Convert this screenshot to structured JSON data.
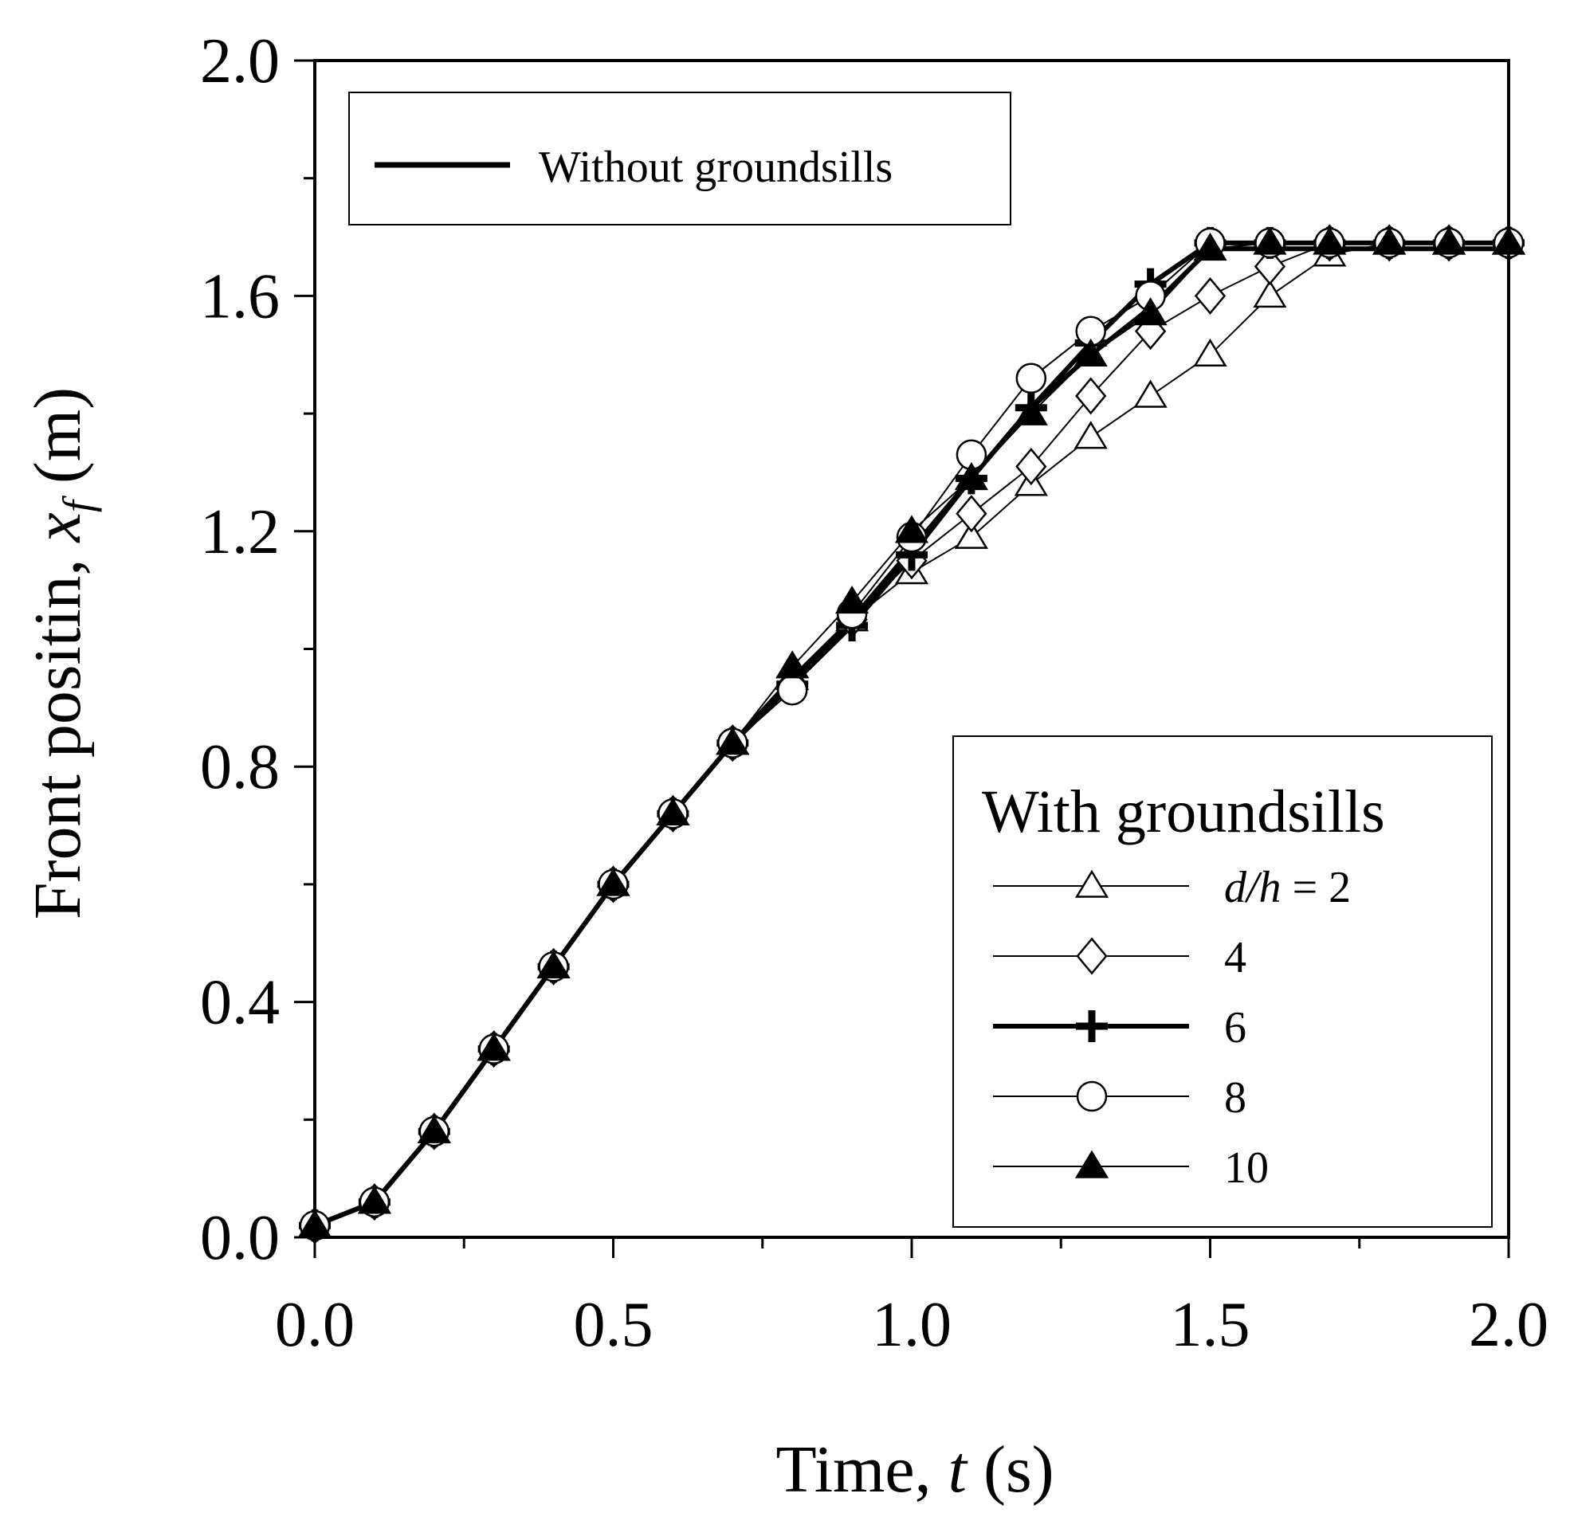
{
  "chart_data": {
    "type": "line",
    "xlabel": "Time, t (s)",
    "xlabel_parts": [
      "Time, ",
      "t",
      " (s)"
    ],
    "ylabel": "Front positin, x_f (m)",
    "ylabel_parts": [
      "Front positin, ",
      "x",
      "f",
      " (m)"
    ],
    "xlim": [
      0,
      2.0
    ],
    "ylim": [
      0,
      2.0
    ],
    "x_ticks": [
      "0.0",
      "0.5",
      "1.0",
      "1.5",
      "2.0"
    ],
    "y_ticks": [
      "0.0",
      "0.4",
      "0.8",
      "1.2",
      "1.6",
      "2.0"
    ],
    "grid": false,
    "legend_placement": [
      "top-left",
      "bottom-right"
    ],
    "legends": {
      "without_label": "Without groundsills",
      "with_title": "With groundsills",
      "entry_prefix": "d/h = ",
      "entries": [
        "2",
        "4",
        "6",
        "8",
        "10"
      ]
    },
    "x": [
      0,
      0.1,
      0.2,
      0.3,
      0.4,
      0.5,
      0.6,
      0.7,
      0.8,
      0.9,
      1.0,
      1.1,
      1.2,
      1.3,
      1.4,
      1.5,
      1.6,
      1.7,
      1.8,
      1.9,
      2.0
    ],
    "series": [
      {
        "name": "Without groundsills",
        "marker": "none",
        "style": "thick",
        "values": [
          0.02,
          0.06,
          0.18,
          0.32,
          0.46,
          0.6,
          0.72,
          0.84,
          0.95,
          1.05,
          1.17,
          1.29,
          1.41,
          1.5,
          1.58,
          1.68,
          1.68,
          1.68,
          1.68,
          1.68,
          1.68
        ]
      },
      {
        "name": "2",
        "marker": "triangle-open",
        "style": "thin",
        "values": [
          0.02,
          0.06,
          0.18,
          0.32,
          0.46,
          0.6,
          0.72,
          0.84,
          0.95,
          1.05,
          1.13,
          1.19,
          1.28,
          1.36,
          1.43,
          1.5,
          1.6,
          1.67,
          1.69,
          1.69,
          1.69
        ]
      },
      {
        "name": "4",
        "marker": "diamond-open",
        "style": "thin",
        "values": [
          0.02,
          0.06,
          0.18,
          0.32,
          0.46,
          0.6,
          0.72,
          0.84,
          0.94,
          1.05,
          1.15,
          1.23,
          1.31,
          1.43,
          1.54,
          1.6,
          1.65,
          1.69,
          1.69,
          1.69,
          1.69
        ]
      },
      {
        "name": "6",
        "marker": "plus",
        "style": "thick",
        "values": [
          0.02,
          0.06,
          0.18,
          0.32,
          0.46,
          0.6,
          0.72,
          0.84,
          0.94,
          1.04,
          1.16,
          1.29,
          1.41,
          1.52,
          1.62,
          1.69,
          1.69,
          1.69,
          1.69,
          1.69,
          1.69
        ]
      },
      {
        "name": "8",
        "marker": "circle-open",
        "style": "thin",
        "values": [
          0.02,
          0.06,
          0.18,
          0.32,
          0.46,
          0.6,
          0.72,
          0.84,
          0.93,
          1.06,
          1.19,
          1.33,
          1.46,
          1.54,
          1.6,
          1.69,
          1.69,
          1.69,
          1.69,
          1.69,
          1.69
        ]
      },
      {
        "name": "10",
        "marker": "triangle-filled",
        "style": "thin",
        "values": [
          0.02,
          0.06,
          0.18,
          0.32,
          0.46,
          0.6,
          0.72,
          0.84,
          0.97,
          1.08,
          1.2,
          1.29,
          1.4,
          1.5,
          1.57,
          1.68,
          1.69,
          1.69,
          1.69,
          1.69,
          1.69
        ]
      }
    ]
  }
}
